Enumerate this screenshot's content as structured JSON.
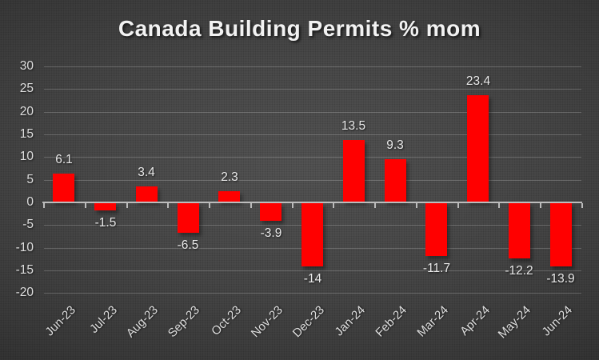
{
  "chart_data": {
    "type": "bar",
    "title": "Canada Building Permits % mom",
    "categories": [
      "Jun-23",
      "Jul-23",
      "Aug-23",
      "Sep-23",
      "Oct-23",
      "Nov-23",
      "Dec-23",
      "Jan-24",
      "Feb-24",
      "Mar-24",
      "Apr-24",
      "May-24",
      "Jun-24"
    ],
    "values": [
      6.1,
      -1.5,
      3.4,
      -6.5,
      2.3,
      -3.9,
      -14,
      13.5,
      9.3,
      -11.7,
      23.4,
      -12.2,
      -13.9
    ],
    "value_labels": [
      "6.1",
      "-1.5",
      "3.4",
      "-6.5",
      "2.3",
      "-3.9",
      "-14",
      "13.5",
      "9.3",
      "-11.7",
      "23.4",
      "-12.2",
      "-13.9"
    ],
    "xlabel": "",
    "ylabel": "",
    "ylim": [
      -20,
      30
    ],
    "ytick_step": 5,
    "yticks": [
      30,
      25,
      20,
      15,
      10,
      5,
      0,
      -5,
      -10,
      -15,
      -20
    ],
    "grid": true,
    "legend": false,
    "bar_color": "#ff0000",
    "axis_line_color": "#bcbcbc",
    "axis_text_color": "#dedede",
    "title_color": "#f2f2f2",
    "background_style": "dark radial gradient"
  }
}
